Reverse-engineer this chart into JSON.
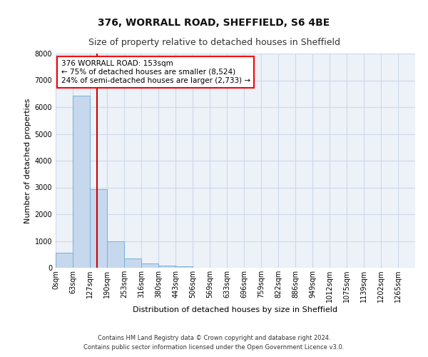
{
  "title1": "376, WORRALL ROAD, SHEFFIELD, S6 4BE",
  "title2": "Size of property relative to detached houses in Sheffield",
  "xlabel": "Distribution of detached houses by size in Sheffield",
  "ylabel": "Number of detached properties",
  "footer1": "Contains HM Land Registry data © Crown copyright and database right 2024.",
  "footer2": "Contains public sector information licensed under the Open Government Licence v3.0.",
  "bar_color": "#c5d8ee",
  "bar_edge_color": "#7aafd4",
  "grid_color": "#cdd8e8",
  "background_color": "#edf2f9",
  "bin_labels": [
    "0sqm",
    "63sqm",
    "127sqm",
    "190sqm",
    "253sqm",
    "316sqm",
    "380sqm",
    "443sqm",
    "506sqm",
    "569sqm",
    "633sqm",
    "696sqm",
    "759sqm",
    "822sqm",
    "886sqm",
    "949sqm",
    "1012sqm",
    "1075sqm",
    "1139sqm",
    "1202sqm",
    "1265sqm"
  ],
  "bar_values": [
    570,
    6430,
    2930,
    980,
    340,
    150,
    80,
    50,
    0,
    0,
    0,
    0,
    0,
    0,
    0,
    0,
    0,
    0,
    0,
    0
  ],
  "bin_width": 63,
  "bin_starts": [
    0,
    63,
    127,
    190,
    253,
    316,
    380,
    443,
    506,
    569,
    633,
    696,
    759,
    822,
    886,
    949,
    1012,
    1075,
    1139,
    1202
  ],
  "ylim": [
    0,
    8000
  ],
  "yticks": [
    0,
    1000,
    2000,
    3000,
    4000,
    5000,
    6000,
    7000,
    8000
  ],
  "red_line_x": 153,
  "annotation_text": "376 WORRALL ROAD: 153sqm\n← 75% of detached houses are smaller (8,524)\n24% of semi-detached houses are larger (2,733) →",
  "annotation_box_color": "white",
  "annotation_border_color": "red",
  "red_line_color": "#cc0000",
  "title1_fontsize": 10,
  "title2_fontsize": 9,
  "xlabel_fontsize": 8,
  "ylabel_fontsize": 8,
  "tick_fontsize": 7,
  "footer_fontsize": 6,
  "annot_fontsize": 7.5
}
